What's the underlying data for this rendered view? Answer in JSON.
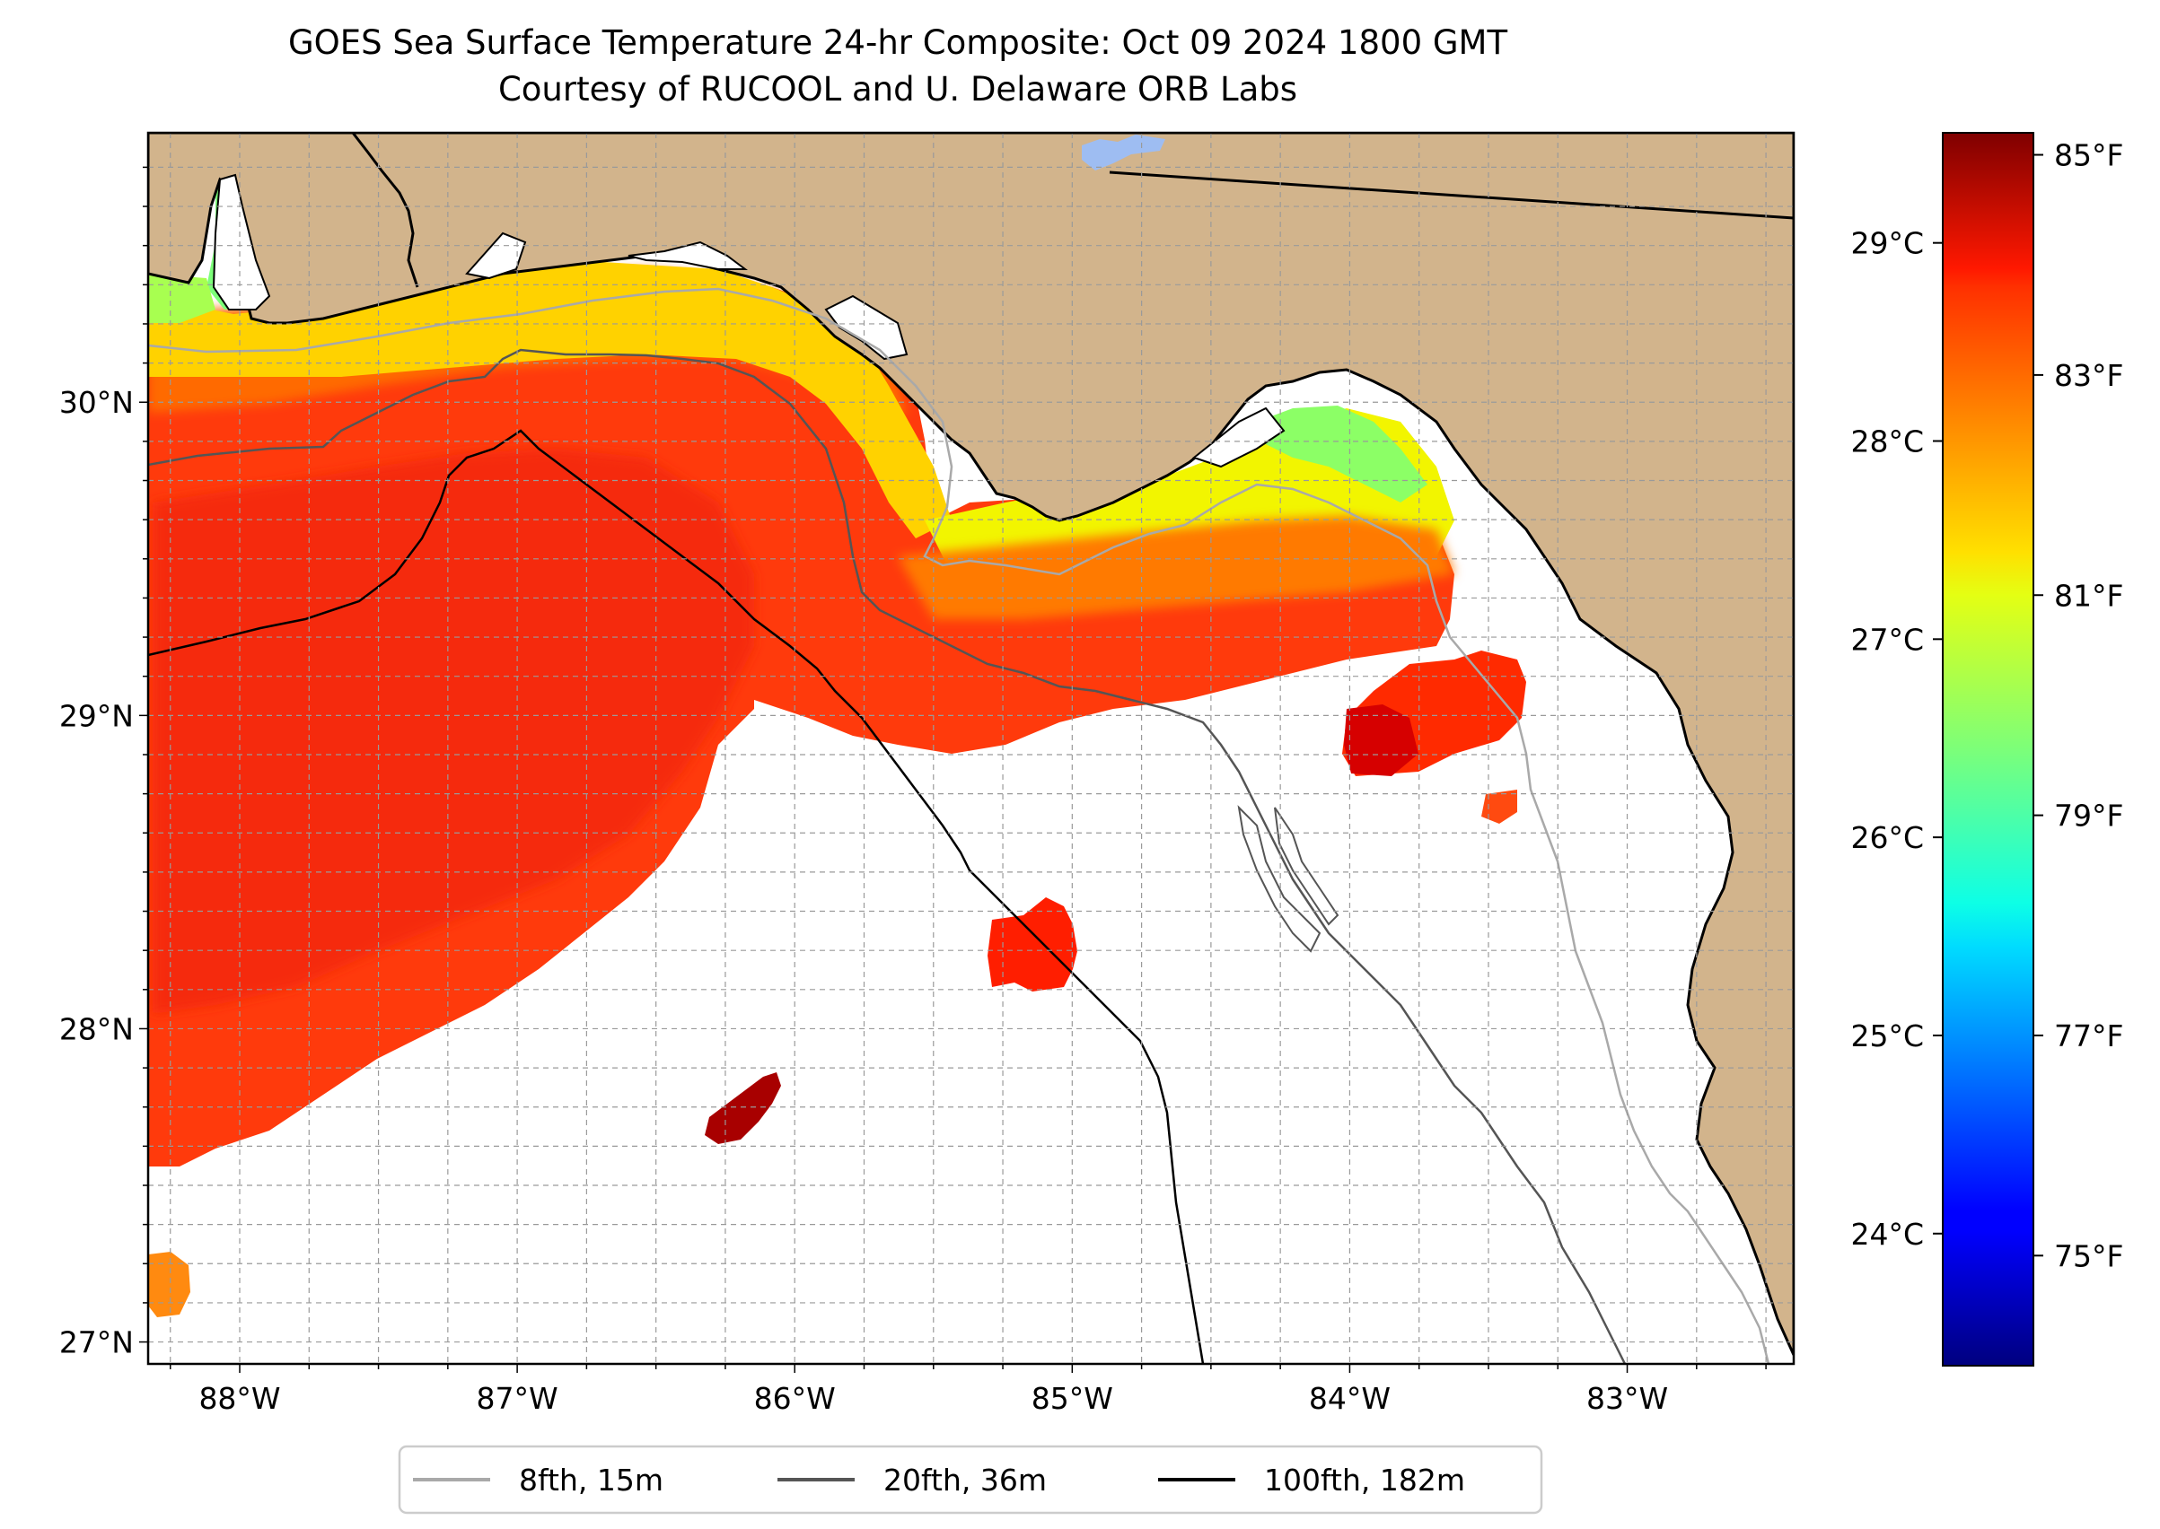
{
  "title": "GOES Sea Surface Temperature 24-hr Composite: Oct 09 2024 1800 GMT",
  "subtitle": "Courtesy of RUCOOL and U. Delaware ORB Labs",
  "map": {
    "lon_range": [
      -88.33,
      -82.4
    ],
    "lat_range": [
      26.93,
      30.86
    ],
    "gridlines": true,
    "land_color": "#D2B48C",
    "lon_ticks": [
      {
        "value": -88,
        "label": "88°W"
      },
      {
        "value": -87,
        "label": "87°W"
      },
      {
        "value": -86,
        "label": "86°W"
      },
      {
        "value": -85,
        "label": "85°W"
      },
      {
        "value": -84,
        "label": "84°W"
      },
      {
        "value": -83,
        "label": "83°W"
      }
    ],
    "lat_ticks": [
      {
        "value": 27,
        "label": "27°N"
      },
      {
        "value": 28,
        "label": "28°N"
      },
      {
        "value": 29,
        "label": "29°N"
      },
      {
        "value": 30,
        "label": "30°N"
      }
    ]
  },
  "legend": {
    "placement": "bottom-center",
    "items": [
      {
        "label": "8fth, 15m",
        "color": "#a9a9a9"
      },
      {
        "label": "20fth, 36m",
        "color": "#555555"
      },
      {
        "label": "100fth, 182m",
        "color": "#000000"
      }
    ]
  },
  "colorbar": {
    "colormap": "jet",
    "range_f": [
      74.0,
      85.2
    ],
    "f_ticks": [
      {
        "value": 75,
        "label": "75°F"
      },
      {
        "value": 77,
        "label": "77°F"
      },
      {
        "value": 79,
        "label": "79°F"
      },
      {
        "value": 81,
        "label": "81°F"
      },
      {
        "value": 83,
        "label": "83°F"
      },
      {
        "value": 85,
        "label": "85°F"
      }
    ],
    "c_ticks": [
      {
        "value": 24,
        "label": "24°C"
      },
      {
        "value": 25,
        "label": "25°C"
      },
      {
        "value": 26,
        "label": "26°C"
      },
      {
        "value": 27,
        "label": "27°C"
      },
      {
        "value": 28,
        "label": "28°C"
      },
      {
        "value": 29,
        "label": "29°C"
      }
    ]
  }
}
